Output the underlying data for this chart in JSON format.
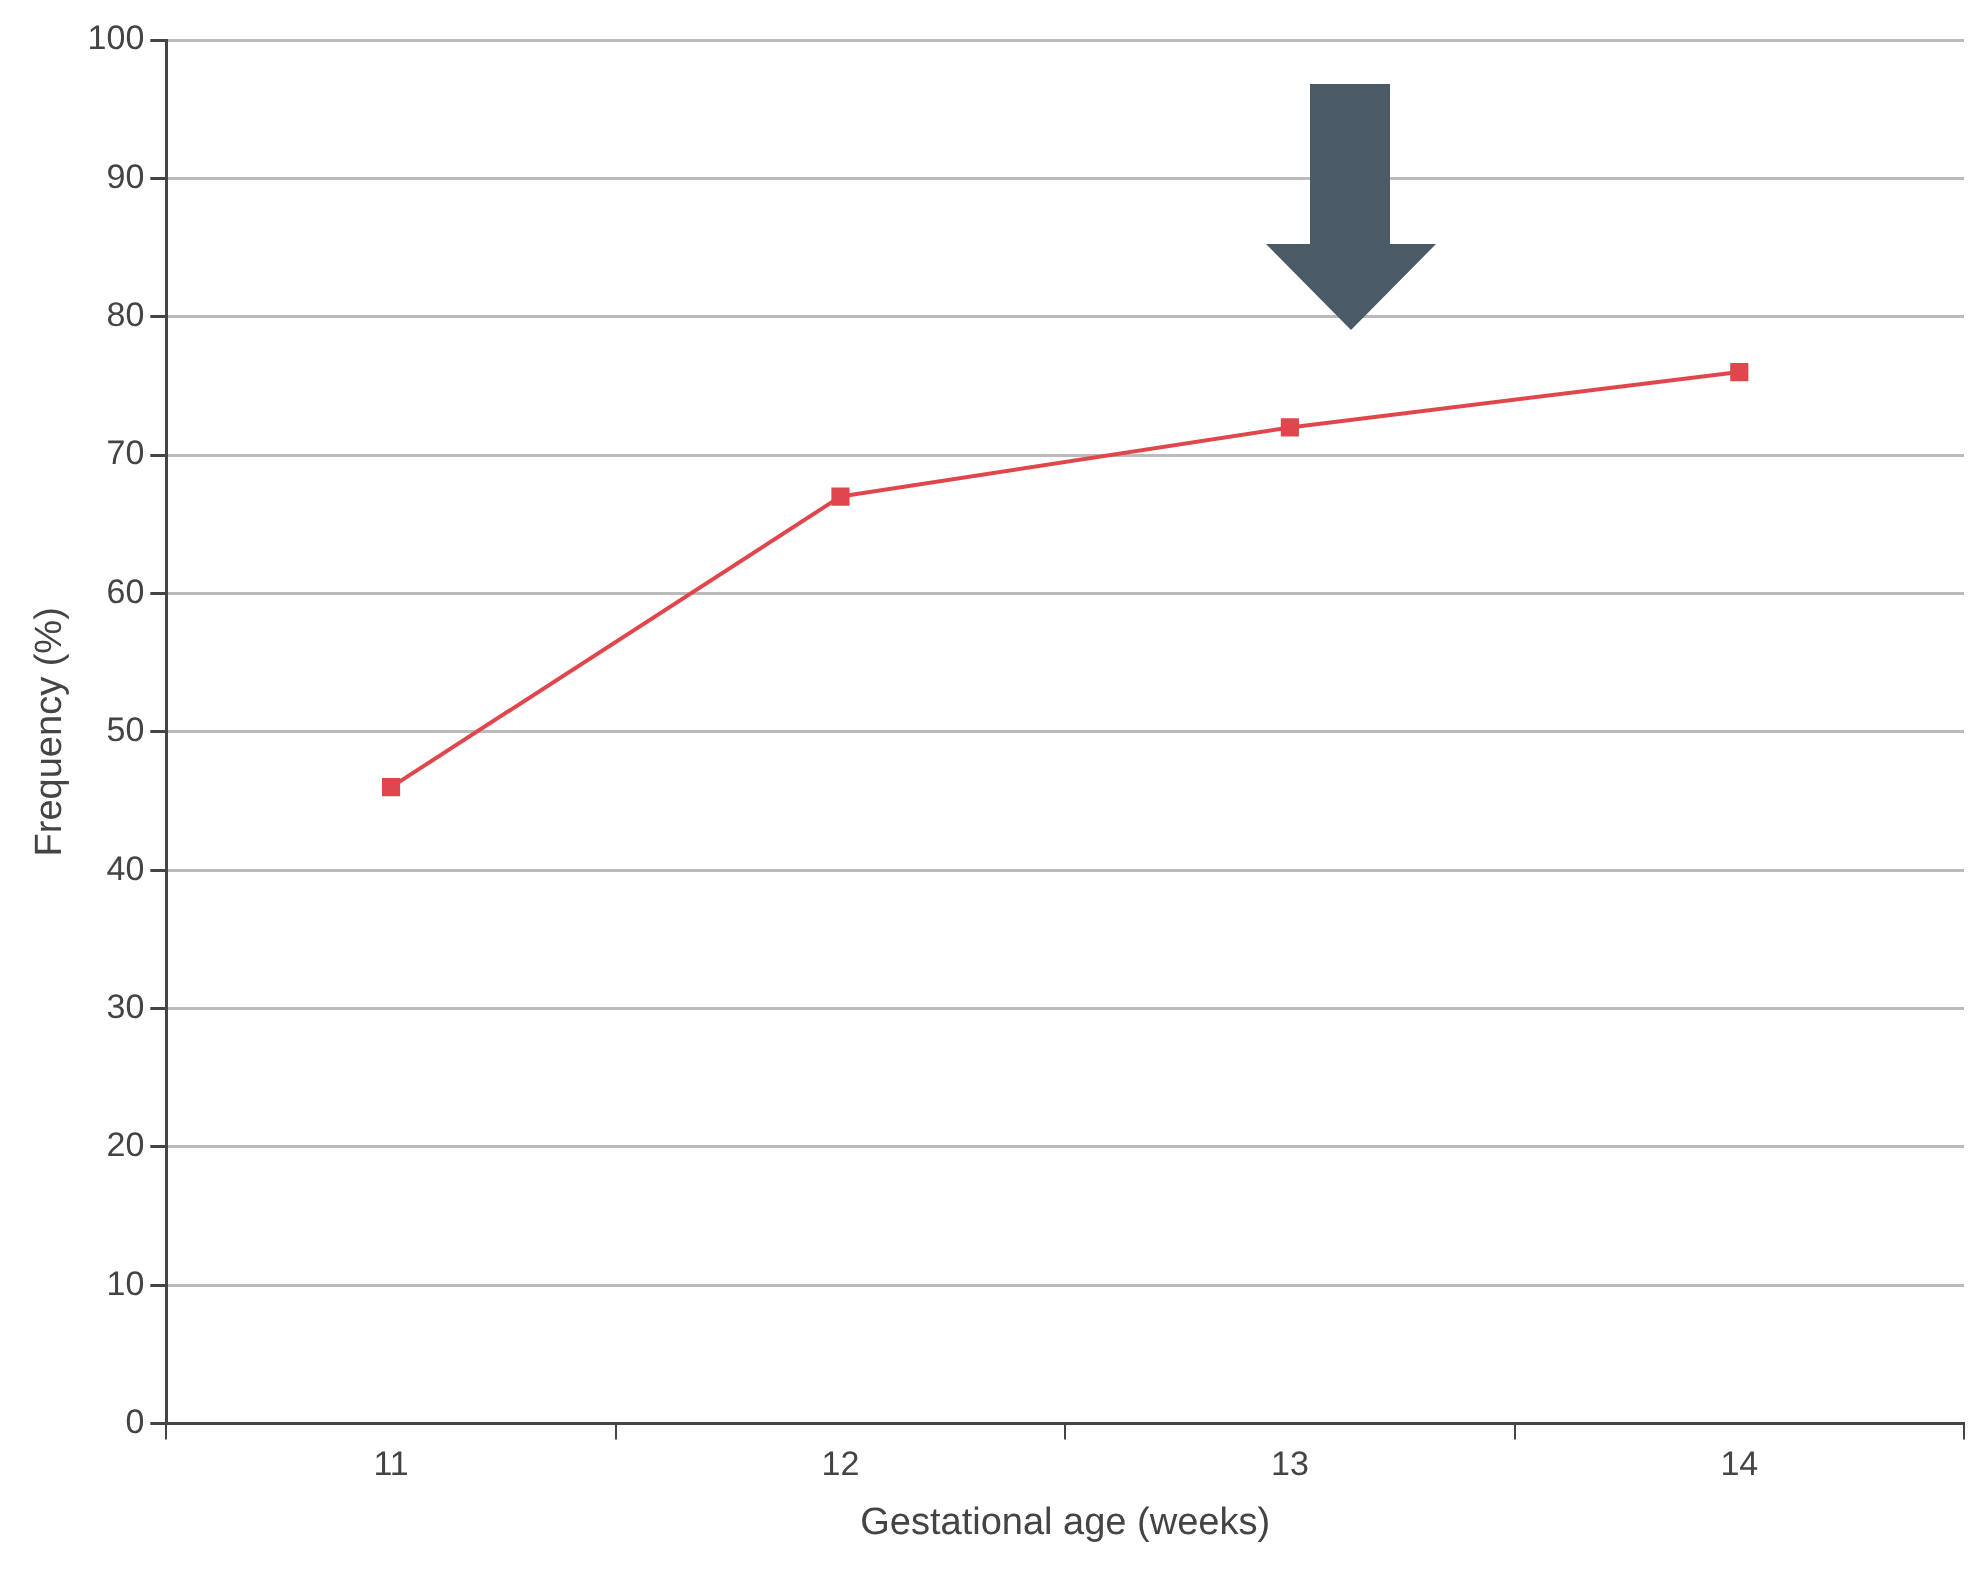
{
  "chart_data": {
    "type": "line",
    "xlabel": "Gestational age (weeks)",
    "ylabel": "Frequency (%)",
    "categories": [
      "11",
      "12",
      "13",
      "14"
    ],
    "series": [
      {
        "color": "#e0474c",
        "values": [
          46,
          67,
          72,
          76
        ]
      }
    ],
    "ylim": [
      0,
      100
    ],
    "yticks": [
      0,
      10,
      20,
      30,
      40,
      50,
      60,
      70,
      80,
      90,
      100
    ],
    "grid": "y",
    "legend": false,
    "marker": "square",
    "line_style": "solid"
  }
}
